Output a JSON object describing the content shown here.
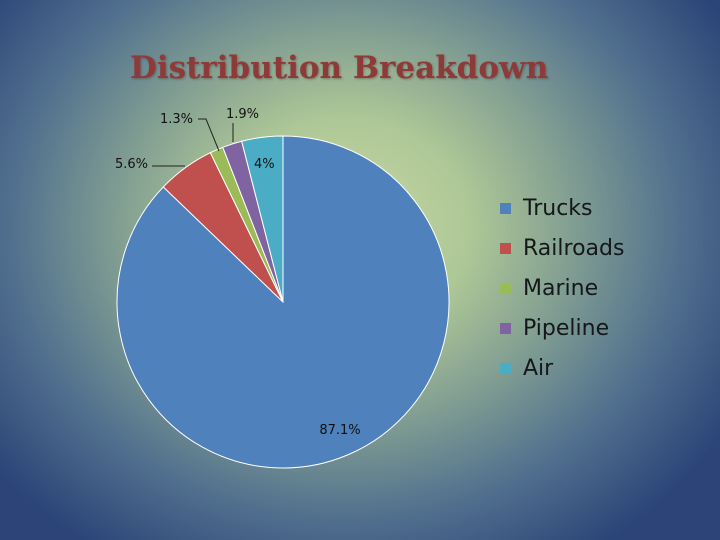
{
  "chart_data": {
    "type": "pie",
    "title": "Distribution Breakdown",
    "categories": [
      "Trucks",
      "Railroads",
      "Marine",
      "Pipeline",
      "Air"
    ],
    "values": [
      87.1,
      5.6,
      1.3,
      1.9,
      4
    ],
    "data_labels": [
      "87.1%",
      "5.6%",
      "1.3%",
      "1.9%",
      "4%"
    ],
    "colors": [
      "#4f81bd",
      "#c0504d",
      "#9bbb59",
      "#8064a2",
      "#4bacc6"
    ],
    "legend_position": "right",
    "start_angle_deg": 0,
    "direction": "clockwise"
  }
}
